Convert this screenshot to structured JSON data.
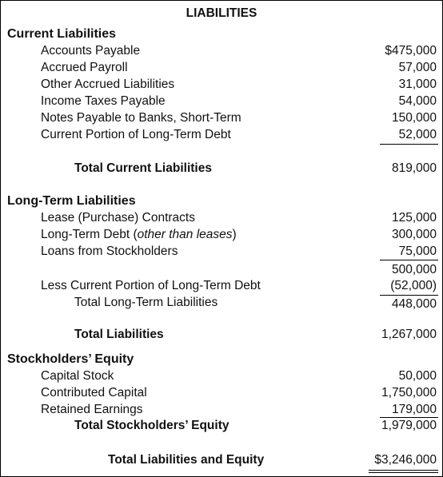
{
  "title": "LIABILITIES",
  "current": {
    "heading": "Current Liabilities",
    "items": [
      {
        "label": "Accounts Payable",
        "amount": "$475,000"
      },
      {
        "label": "Accrued Payroll",
        "amount": "57,000"
      },
      {
        "label": "Other Accrued Liabilities",
        "amount": "31,000"
      },
      {
        "label": "Income Taxes Payable",
        "amount": "54,000"
      },
      {
        "label": "Notes Payable to Banks, Short-Term",
        "amount": "150,000"
      },
      {
        "label": "Current Portion of Long-Term Debt",
        "amount": "52,000"
      }
    ],
    "total_label": "Total Current Liabilities",
    "total_amount": "819,000"
  },
  "longterm": {
    "heading": "Long-Term Liabilities",
    "items": [
      {
        "label": "Lease (Purchase) Contracts",
        "amount": "125,000"
      },
      {
        "label_main": "Long-Term Debt (",
        "label_note": "other than leases",
        "label_end": ")",
        "amount": "300,000"
      },
      {
        "label": "Loans from Stockholders",
        "amount": "75,000"
      }
    ],
    "subtotal_amount": "500,000",
    "less_label": "Less Current Portion of Long-Term Debt",
    "less_amount": "(52,000)",
    "total_label": "Total Long-Term Liabilities",
    "total_amount": "448,000"
  },
  "total_liabilities": {
    "label": "Total Liabilities",
    "amount": "1,267,000"
  },
  "equity": {
    "heading": "Stockholders’ Equity",
    "items": [
      {
        "label": "Capital Stock",
        "amount": "50,000"
      },
      {
        "label": "Contributed Capital",
        "amount": "1,750,000"
      },
      {
        "label": "Retained Earnings",
        "amount": "179,000"
      }
    ],
    "total_label": "Total Stockholders’ Equity",
    "total_amount": "1,979,000"
  },
  "grand_total": {
    "label": "Total Liabilities and Equity",
    "amount": "$3,246,000"
  }
}
